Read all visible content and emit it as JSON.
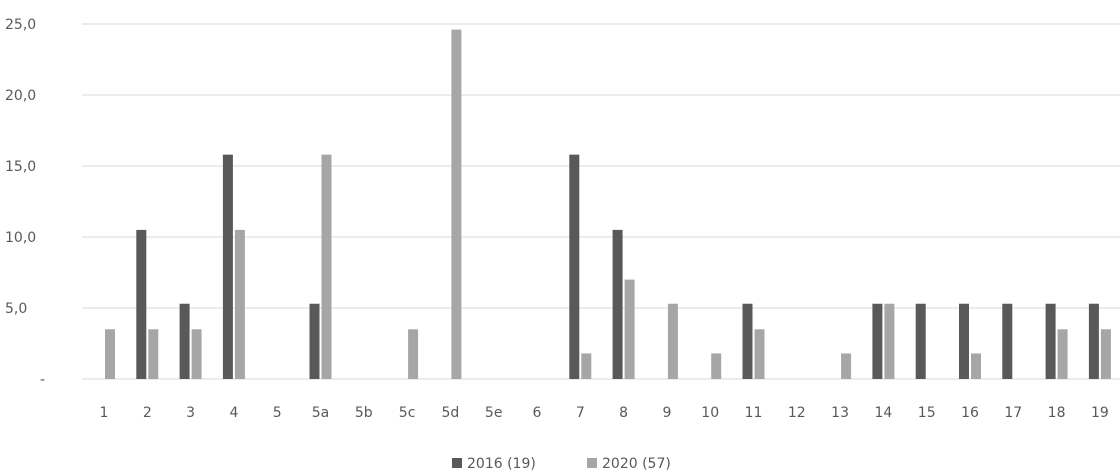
{
  "chart_data": {
    "type": "bar",
    "title": "",
    "xlabel": "",
    "ylabel": "",
    "ylim": [
      0,
      25
    ],
    "yticks": [
      "-",
      "5,0",
      "10,0",
      "15,0",
      "20,0",
      "25,0"
    ],
    "grid": true,
    "legend_position": "bottom",
    "categories": [
      "1",
      "2",
      "3",
      "4",
      "5",
      "5a",
      "5b",
      "5c",
      "5d",
      "5e",
      "6",
      "7",
      "8",
      "9",
      "10",
      "11",
      "12",
      "13",
      "14",
      "15",
      "16",
      "17",
      "18",
      "19"
    ],
    "series": [
      {
        "name": "2016 (19)",
        "color": "#595959",
        "values": [
          0,
          10.5,
          5.3,
          15.8,
          0,
          5.3,
          0,
          0,
          0,
          0,
          0,
          15.8,
          10.5,
          0,
          0,
          5.3,
          0,
          0,
          5.3,
          5.3,
          5.3,
          5.3,
          5.3,
          5.3
        ]
      },
      {
        "name": "2020 (57)",
        "color": "#a6a6a6",
        "values": [
          3.5,
          3.5,
          3.5,
          10.5,
          0,
          15.8,
          0,
          3.5,
          24.6,
          0,
          0,
          1.8,
          7.0,
          5.3,
          1.8,
          3.5,
          0,
          1.8,
          5.3,
          0,
          1.8,
          0,
          3.5,
          3.5
        ]
      }
    ]
  }
}
